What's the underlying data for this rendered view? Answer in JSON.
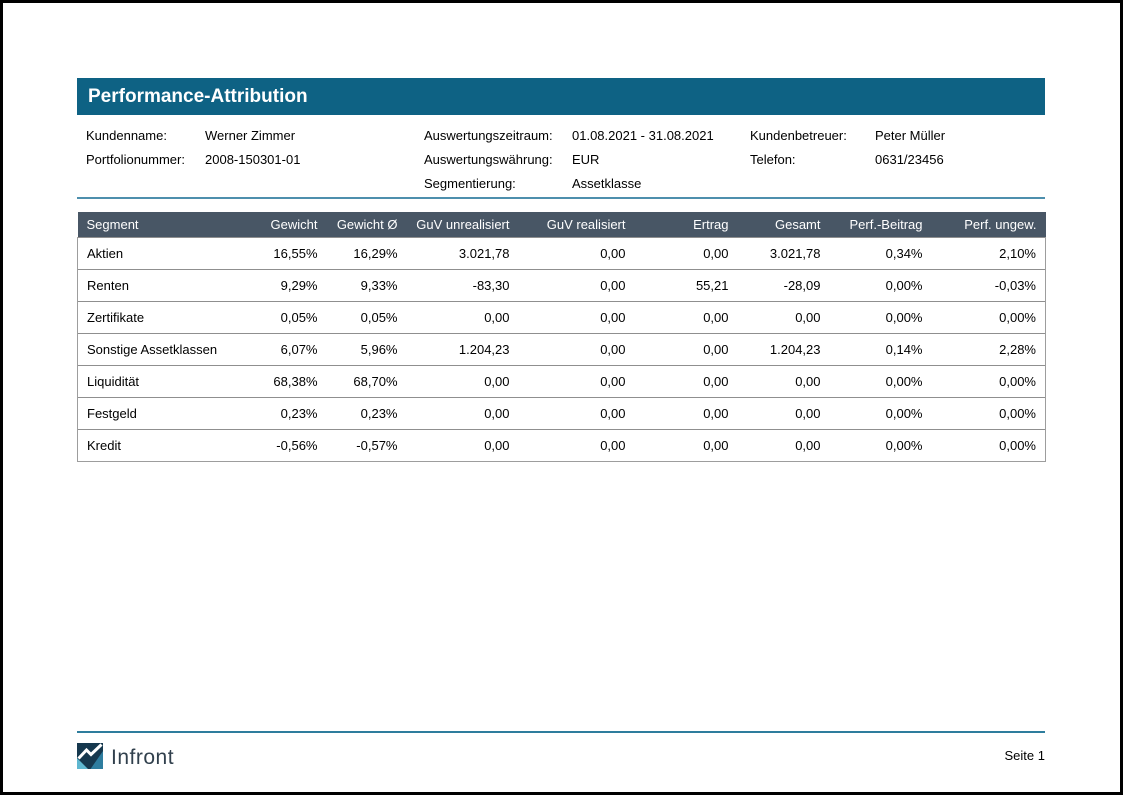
{
  "report": {
    "title": "Performance-Attribution",
    "info": {
      "kundenname_label": "Kundenname:",
      "kundenname_value": "Werner Zimmer",
      "portfolionummer_label": "Portfolionummer:",
      "portfolionummer_value": "2008-150301-01",
      "zeitraum_label": "Auswertungszeitraum:",
      "zeitraum_value": "01.08.2021 - 31.08.2021",
      "waehrung_label": "Auswertungswährung:",
      "waehrung_value": "EUR",
      "segmentierung_label": "Segmentierung:",
      "segmentierung_value": "Assetklasse",
      "betreuer_label": "Kundenbetreuer:",
      "betreuer_value": "Peter Müller",
      "telefon_label": "Telefon:",
      "telefon_value": "0631/23456"
    },
    "table": {
      "columns": [
        "Segment",
        "Gewicht",
        "Gewicht Ø",
        "GuV unrealisiert",
        "GuV realisiert",
        "Ertrag",
        "Gesamt",
        "Perf.-Beitrag",
        "Perf. ungew."
      ],
      "rows": [
        [
          "Aktien",
          "16,55%",
          "16,29%",
          "3.021,78",
          "0,00",
          "0,00",
          "3.021,78",
          "0,34%",
          "2,10%"
        ],
        [
          "Renten",
          "9,29%",
          "9,33%",
          "-83,30",
          "0,00",
          "55,21",
          "-28,09",
          "0,00%",
          "-0,03%"
        ],
        [
          "Zertifikate",
          "0,05%",
          "0,05%",
          "0,00",
          "0,00",
          "0,00",
          "0,00",
          "0,00%",
          "0,00%"
        ],
        [
          "Sonstige Assetklassen",
          "6,07%",
          "5,96%",
          "1.204,23",
          "0,00",
          "0,00",
          "1.204,23",
          "0,14%",
          "2,28%"
        ],
        [
          "Liquidität",
          "68,38%",
          "68,70%",
          "0,00",
          "0,00",
          "0,00",
          "0,00",
          "0,00%",
          "0,00%"
        ],
        [
          "Festgeld",
          "0,23%",
          "0,23%",
          "0,00",
          "0,00",
          "0,00",
          "0,00",
          "0,00%",
          "0,00%"
        ],
        [
          "Kredit",
          "-0,56%",
          "-0,57%",
          "0,00",
          "0,00",
          "0,00",
          "0,00",
          "0,00%",
          "0,00%"
        ]
      ]
    },
    "footer": {
      "brand": "Infront",
      "page": "Seite 1"
    }
  },
  "colors": {
    "title_bar_bg": "#0e6284",
    "table_header_bg": "#485665",
    "header_divider": "#4d8fad",
    "footer_line": "#2e7d9d",
    "brand_color": "#31404d",
    "logo_dark": "#16384e",
    "logo_light": "#5fb7d0",
    "logo_mid": "#2e7d9f"
  }
}
